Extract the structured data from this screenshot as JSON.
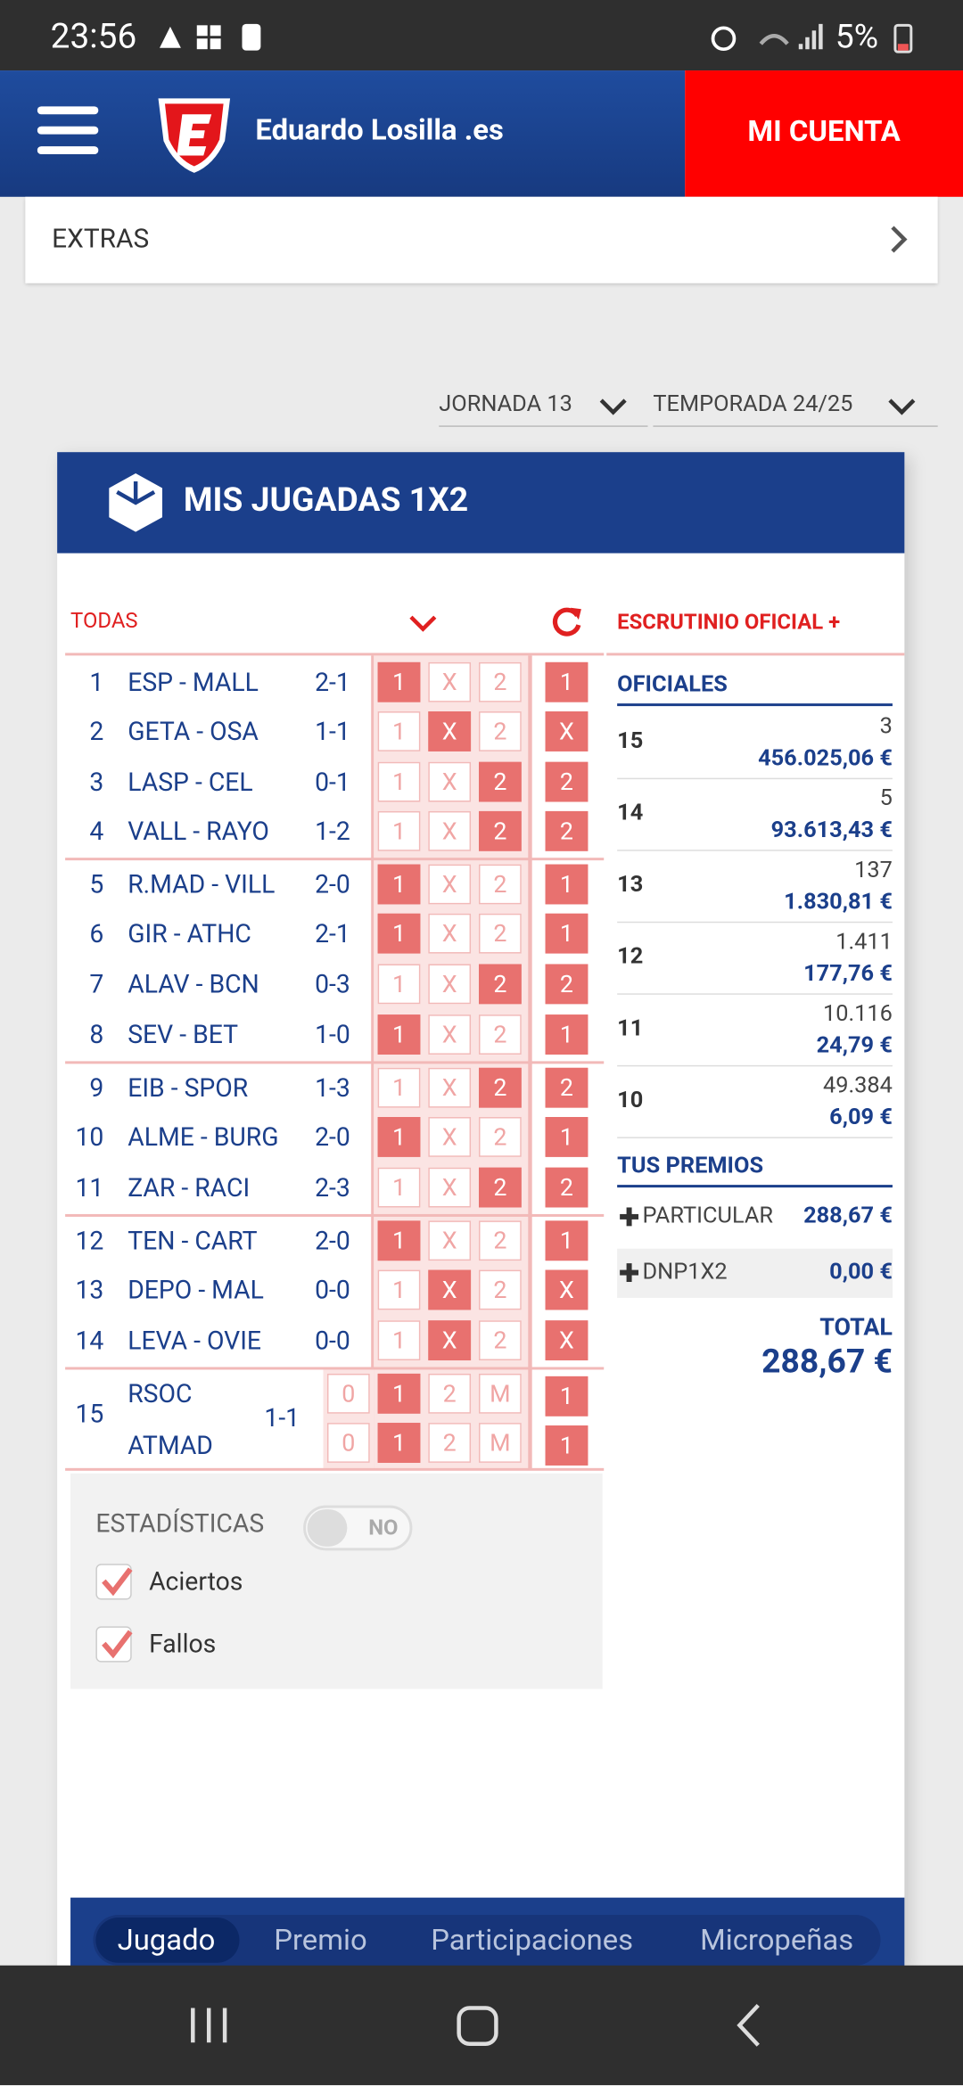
{
  "status_bar": {
    "time": "23:56",
    "battery": "5%"
  },
  "header": {
    "brand": "Eduardo Losilla .es",
    "account_button": "MI CUENTA"
  },
  "extras": "EXTRAS",
  "filters": {
    "jornada": "JORNADA 13",
    "temporada": "TEMPORADA 24/25"
  },
  "panel": {
    "title": "MIS JUGADAS 1X2",
    "filter": "TODAS",
    "options": [
      "1",
      "X",
      "2"
    ],
    "matches": [
      {
        "num": 1,
        "match": "ESP - MALL",
        "score": "2-1",
        "pick": 0,
        "result": "1"
      },
      {
        "num": 2,
        "match": "GETA - OSA",
        "score": "1-1",
        "pick": 1,
        "result": "X"
      },
      {
        "num": 3,
        "match": "LASP - CEL",
        "score": "0-1",
        "pick": 2,
        "result": "2"
      },
      {
        "num": 4,
        "match": "VALL - RAYO",
        "score": "1-2",
        "pick": 2,
        "result": "2"
      },
      {
        "num": 5,
        "match": "R.MAD - VILL",
        "score": "2-0",
        "pick": 0,
        "result": "1"
      },
      {
        "num": 6,
        "match": "GIR - ATHC",
        "score": "2-1",
        "pick": 0,
        "result": "1"
      },
      {
        "num": 7,
        "match": "ALAV - BCN",
        "score": "0-3",
        "pick": 2,
        "result": "2"
      },
      {
        "num": 8,
        "match": "SEV - BET",
        "score": "1-0",
        "pick": 0,
        "result": "1"
      },
      {
        "num": 9,
        "match": "EIB - SPOR",
        "score": "1-3",
        "pick": 2,
        "result": "2"
      },
      {
        "num": 10,
        "match": "ALME - BURG",
        "score": "2-0",
        "pick": 0,
        "result": "1"
      },
      {
        "num": 11,
        "match": "ZAR - RACI",
        "score": "2-3",
        "pick": 2,
        "result": "2"
      },
      {
        "num": 12,
        "match": "TEN - CART",
        "score": "2-0",
        "pick": 0,
        "result": "1"
      },
      {
        "num": 13,
        "match": "DEPO - MAL",
        "score": "0-0",
        "pick": 1,
        "result": "X"
      },
      {
        "num": 14,
        "match": "LEVA - OVIE",
        "score": "0-0",
        "pick": 1,
        "result": "X"
      }
    ],
    "pleno": {
      "num": 15,
      "teams": [
        "RSOC",
        "ATMAD"
      ],
      "score": "1-1",
      "options": [
        "0",
        "1",
        "2",
        "M"
      ],
      "rows": [
        {
          "pick": 1,
          "result": "1"
        },
        {
          "pick": 1,
          "result": "1"
        }
      ]
    }
  },
  "scrutiny": {
    "title": "ESCRUTINIO OFICIAL +",
    "official_title": "OFICIALES",
    "prizes": [
      {
        "category": 15,
        "winners": "3",
        "amount": "456.025,06 €"
      },
      {
        "category": 14,
        "winners": "5",
        "amount": "93.613,43 €"
      },
      {
        "category": 13,
        "winners": "137",
        "amount": "1.830,81 €"
      },
      {
        "category": 12,
        "winners": "1.411",
        "amount": "177,76 €"
      },
      {
        "category": 11,
        "winners": "10.116",
        "amount": "24,79 €"
      },
      {
        "category": 10,
        "winners": "49.384",
        "amount": "6,09 €"
      }
    ],
    "your_prizes_title": "TUS PREMIOS",
    "your_prizes": [
      {
        "name": "PARTICULAR",
        "amount": "288,67 €"
      },
      {
        "name": "DNP1X2",
        "amount": "0,00 €"
      }
    ],
    "total_label": "TOTAL",
    "total": "288,67 €"
  },
  "stats": {
    "title": "ESTADÍSTICAS",
    "toggle": "NO",
    "options": [
      "Aciertos",
      "Fallos"
    ]
  },
  "tabs": [
    "Jugado",
    "Premio",
    "Participaciones",
    "Micropeñas"
  ],
  "active_tab": 0
}
